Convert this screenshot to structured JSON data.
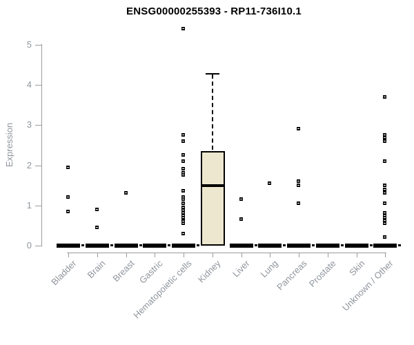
{
  "chart_data": {
    "type": "boxplot",
    "title": "ENSG00000255393 - RP11-736I10.1",
    "ylabel": "Expression",
    "xlabel": "",
    "ylim": [
      0,
      5
    ],
    "yticks": [
      0,
      1,
      2,
      3,
      4,
      5
    ],
    "grid": false,
    "legend": "none",
    "colors": {
      "box_fill": "#ece7ce",
      "box_border": "#000000",
      "median": "#000000",
      "outlier": "#000000",
      "axis": "#9b9b9b",
      "tick_label": "#8f959c",
      "title": "#000000"
    },
    "categories": [
      "Bladder",
      "Brain",
      "Breast",
      "Gastric",
      "Hematopoietic cells",
      "Kidney",
      "Liver",
      "Lung",
      "Pancreas",
      "Prostate",
      "Skin",
      "Unknown / Other"
    ],
    "series": [
      {
        "category": "Bladder",
        "q1": 0,
        "median": 0,
        "q3": 0,
        "whisker_low": 0,
        "whisker_high": 0,
        "outliers": [
          1.95,
          1.2,
          0.85
        ]
      },
      {
        "category": "Brain",
        "q1": 0,
        "median": 0,
        "q3": 0,
        "whisker_low": 0,
        "whisker_high": 0,
        "outliers": [
          0.9,
          0.45
        ]
      },
      {
        "category": "Breast",
        "q1": 0,
        "median": 0,
        "q3": 0,
        "whisker_low": 0,
        "whisker_high": 0,
        "outliers": [
          1.3
        ]
      },
      {
        "category": "Gastric",
        "q1": 0,
        "median": 0,
        "q3": 0,
        "whisker_low": 0,
        "whisker_high": 0,
        "outliers": []
      },
      {
        "category": "Hematopoietic cells",
        "q1": 0,
        "median": 0,
        "q3": 0,
        "whisker_low": 0,
        "whisker_high": 0,
        "outliers": [
          5.4,
          2.75,
          2.6,
          2.25,
          2.1,
          1.9,
          1.8,
          1.75,
          1.35,
          1.2,
          1.15,
          1.05,
          0.95,
          0.88,
          0.8,
          0.74,
          0.68,
          0.6,
          0.55,
          0.3
        ]
      },
      {
        "category": "Kidney",
        "q1": 0,
        "median": 1.5,
        "q3": 2.35,
        "whisker_low": 0,
        "whisker_high": 4.3,
        "outliers": []
      },
      {
        "category": "Liver",
        "q1": 0,
        "median": 0,
        "q3": 0,
        "whisker_low": 0,
        "whisker_high": 0,
        "outliers": [
          1.15,
          0.65
        ]
      },
      {
        "category": "Lung",
        "q1": 0,
        "median": 0,
        "q3": 0,
        "whisker_low": 0,
        "whisker_high": 0,
        "outliers": [
          1.55
        ]
      },
      {
        "category": "Pancreas",
        "q1": 0,
        "median": 0,
        "q3": 0,
        "whisker_low": 0,
        "whisker_high": 0,
        "outliers": [
          2.9,
          1.6,
          1.5,
          1.05
        ]
      },
      {
        "category": "Prostate",
        "q1": 0,
        "median": 0,
        "q3": 0,
        "whisker_low": 0,
        "whisker_high": 0,
        "outliers": []
      },
      {
        "category": "Skin",
        "q1": 0,
        "median": 0,
        "q3": 0,
        "whisker_low": 0,
        "whisker_high": 0,
        "outliers": []
      },
      {
        "category": "Unknown / Other",
        "q1": 0,
        "median": 0,
        "q3": 0,
        "whisker_low": 0,
        "whisker_high": 0,
        "outliers": [
          3.7,
          2.75,
          2.68,
          2.6,
          2.1,
          1.5,
          1.4,
          1.3,
          1.05,
          0.8,
          0.74,
          0.68,
          0.62,
          0.55,
          0.2
        ]
      }
    ]
  }
}
